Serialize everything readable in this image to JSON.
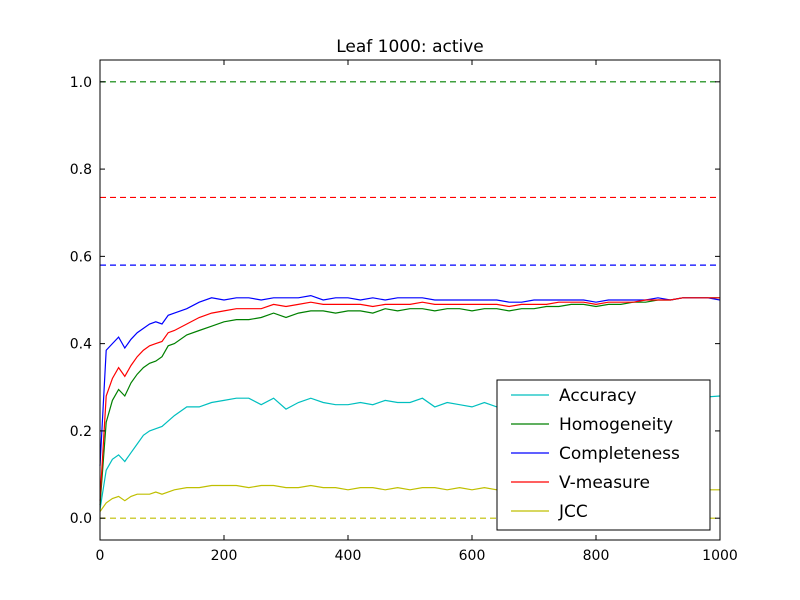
{
  "chart_data": {
    "type": "line",
    "title": "Leaf 1000: active",
    "xlabel": "",
    "ylabel": "",
    "xlim": [
      0,
      1000
    ],
    "ylim": [
      -0.05,
      1.05
    ],
    "x_ticks": [
      0,
      200,
      400,
      600,
      800,
      1000
    ],
    "x_tick_labels": [
      "0",
      "200",
      "400",
      "600",
      "800",
      "1000"
    ],
    "y_ticks": [
      0.0,
      0.2,
      0.4,
      0.6,
      0.8,
      1.0
    ],
    "y_tick_labels": [
      "0.0",
      "0.2",
      "0.4",
      "0.6",
      "0.8",
      "1.0"
    ],
    "grid": false,
    "legend_position": "bottom-right",
    "series": [
      {
        "name": "Accuracy",
        "color": "#00bfbf",
        "x": [
          0,
          10,
          20,
          30,
          40,
          50,
          60,
          70,
          80,
          90,
          100,
          120,
          140,
          160,
          180,
          200,
          220,
          240,
          260,
          280,
          300,
          320,
          340,
          360,
          380,
          400,
          420,
          440,
          460,
          480,
          500,
          520,
          540,
          560,
          580,
          600,
          620,
          640,
          660,
          700,
          750,
          800,
          850,
          900,
          950,
          1000
        ],
        "values": [
          0.02,
          0.11,
          0.135,
          0.145,
          0.13,
          0.15,
          0.17,
          0.19,
          0.2,
          0.205,
          0.21,
          0.235,
          0.255,
          0.255,
          0.265,
          0.27,
          0.275,
          0.275,
          0.26,
          0.275,
          0.25,
          0.265,
          0.275,
          0.265,
          0.26,
          0.26,
          0.265,
          0.26,
          0.27,
          0.265,
          0.265,
          0.275,
          0.255,
          0.265,
          0.26,
          0.255,
          0.265,
          0.255,
          0.26,
          0.265,
          0.265,
          0.265,
          0.27,
          0.27,
          0.275,
          0.28
        ]
      },
      {
        "name": "Homogeneity",
        "color": "#008000",
        "x": [
          0,
          10,
          20,
          30,
          40,
          50,
          60,
          70,
          80,
          90,
          100,
          110,
          120,
          140,
          160,
          180,
          200,
          220,
          240,
          260,
          280,
          300,
          320,
          340,
          360,
          380,
          400,
          420,
          440,
          460,
          480,
          500,
          520,
          540,
          560,
          580,
          600,
          620,
          640,
          660,
          680,
          700,
          720,
          740,
          760,
          780,
          800,
          820,
          840,
          860,
          880,
          900,
          920,
          940,
          960,
          980,
          1000
        ],
        "values": [
          0.03,
          0.22,
          0.27,
          0.295,
          0.28,
          0.31,
          0.33,
          0.345,
          0.355,
          0.36,
          0.37,
          0.395,
          0.4,
          0.42,
          0.43,
          0.44,
          0.45,
          0.455,
          0.455,
          0.46,
          0.47,
          0.46,
          0.47,
          0.475,
          0.475,
          0.47,
          0.475,
          0.475,
          0.47,
          0.48,
          0.475,
          0.48,
          0.48,
          0.475,
          0.48,
          0.48,
          0.475,
          0.48,
          0.48,
          0.475,
          0.48,
          0.48,
          0.485,
          0.485,
          0.49,
          0.49,
          0.485,
          0.49,
          0.49,
          0.495,
          0.495,
          0.5,
          0.5,
          0.505,
          0.505,
          0.505,
          0.505
        ]
      },
      {
        "name": "Completeness",
        "color": "#0000ff",
        "x": [
          0,
          10,
          20,
          30,
          40,
          50,
          60,
          70,
          80,
          90,
          100,
          110,
          120,
          140,
          160,
          180,
          200,
          220,
          240,
          260,
          280,
          300,
          320,
          340,
          360,
          380,
          400,
          420,
          440,
          460,
          480,
          500,
          520,
          540,
          560,
          580,
          600,
          620,
          640,
          660,
          680,
          700,
          720,
          740,
          760,
          780,
          800,
          820,
          840,
          860,
          880,
          900,
          920,
          940,
          960,
          980,
          1000
        ],
        "values": [
          0.12,
          0.385,
          0.4,
          0.415,
          0.39,
          0.41,
          0.425,
          0.435,
          0.445,
          0.45,
          0.445,
          0.465,
          0.47,
          0.48,
          0.495,
          0.505,
          0.5,
          0.505,
          0.505,
          0.5,
          0.505,
          0.505,
          0.505,
          0.51,
          0.5,
          0.505,
          0.505,
          0.5,
          0.505,
          0.5,
          0.505,
          0.505,
          0.505,
          0.5,
          0.5,
          0.5,
          0.5,
          0.5,
          0.5,
          0.495,
          0.495,
          0.5,
          0.5,
          0.5,
          0.5,
          0.5,
          0.495,
          0.5,
          0.5,
          0.5,
          0.5,
          0.505,
          0.5,
          0.505,
          0.505,
          0.505,
          0.5
        ]
      },
      {
        "name": "V-measure",
        "color": "#ff0000",
        "x": [
          0,
          10,
          20,
          30,
          40,
          50,
          60,
          70,
          80,
          90,
          100,
          110,
          120,
          140,
          160,
          180,
          200,
          220,
          240,
          260,
          280,
          300,
          320,
          340,
          360,
          380,
          400,
          420,
          440,
          460,
          480,
          500,
          520,
          540,
          560,
          580,
          600,
          620,
          640,
          660,
          680,
          700,
          720,
          740,
          760,
          780,
          800,
          820,
          840,
          860,
          880,
          900,
          920,
          940,
          960,
          980,
          1000
        ],
        "values": [
          0.04,
          0.28,
          0.32,
          0.345,
          0.325,
          0.35,
          0.37,
          0.385,
          0.395,
          0.4,
          0.405,
          0.425,
          0.43,
          0.445,
          0.46,
          0.47,
          0.475,
          0.48,
          0.48,
          0.48,
          0.49,
          0.485,
          0.49,
          0.495,
          0.49,
          0.49,
          0.49,
          0.49,
          0.485,
          0.49,
          0.49,
          0.49,
          0.495,
          0.49,
          0.49,
          0.49,
          0.49,
          0.49,
          0.49,
          0.485,
          0.49,
          0.49,
          0.49,
          0.495,
          0.495,
          0.495,
          0.49,
          0.495,
          0.495,
          0.495,
          0.5,
          0.5,
          0.5,
          0.505,
          0.505,
          0.505,
          0.505
        ]
      },
      {
        "name": "JCC",
        "color": "#bfbf00",
        "x": [
          0,
          10,
          20,
          30,
          40,
          50,
          60,
          70,
          80,
          90,
          100,
          120,
          140,
          160,
          180,
          200,
          220,
          240,
          260,
          280,
          300,
          320,
          340,
          360,
          380,
          400,
          420,
          440,
          460,
          480,
          500,
          520,
          540,
          560,
          580,
          600,
          620,
          640,
          660,
          700,
          750,
          800,
          850,
          900,
          950,
          1000
        ],
        "values": [
          0.015,
          0.035,
          0.045,
          0.05,
          0.04,
          0.05,
          0.055,
          0.055,
          0.055,
          0.06,
          0.055,
          0.065,
          0.07,
          0.07,
          0.075,
          0.075,
          0.075,
          0.07,
          0.075,
          0.075,
          0.07,
          0.07,
          0.075,
          0.07,
          0.07,
          0.065,
          0.07,
          0.07,
          0.065,
          0.07,
          0.065,
          0.07,
          0.07,
          0.065,
          0.07,
          0.065,
          0.07,
          0.065,
          0.065,
          0.065,
          0.065,
          0.065,
          0.065,
          0.065,
          0.065,
          0.065
        ]
      }
    ],
    "reference_lines": [
      {
        "y": 1.0,
        "color": "#008000",
        "style": "dashed"
      },
      {
        "y": 0.58,
        "color": "#0000ff",
        "style": "dashed"
      },
      {
        "y": 0.735,
        "color": "#ff0000",
        "style": "dashed"
      },
      {
        "y": 0.0,
        "color": "#bfbf00",
        "style": "dashed"
      }
    ]
  }
}
